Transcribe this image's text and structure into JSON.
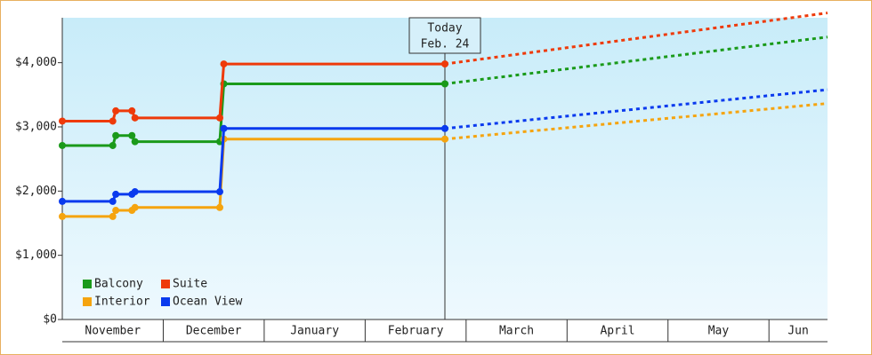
{
  "chart_data": {
    "type": "step-line",
    "x": [
      0,
      0.5,
      0.53,
      0.69,
      0.72,
      1.56,
      1.6,
      3.79
    ],
    "forecast_x": [
      3.79,
      7.58
    ],
    "xlim": [
      0,
      7.58
    ],
    "months": [
      "November",
      "December",
      "January",
      "February",
      "March",
      "April",
      "May",
      "Jun"
    ],
    "ylim": [
      0,
      4700
    ],
    "yticks": [
      {
        "value": 0,
        "label": "$0"
      },
      {
        "value": 1000,
        "label": "$1,000"
      },
      {
        "value": 2000,
        "label": "$2,000"
      },
      {
        "value": 3000,
        "label": "$3,000"
      },
      {
        "value": 4000,
        "label": "$4,000"
      }
    ],
    "annotation": {
      "x": 3.79,
      "lines": [
        "Today",
        "Feb. 24"
      ]
    },
    "series": [
      {
        "name": "Balcony",
        "color": "#1a9a1a",
        "values": [
          2710,
          2710,
          2865,
          2865,
          2770,
          2770,
          3670,
          3670
        ],
        "forecast": [
          3670,
          4400
        ]
      },
      {
        "name": "Suite",
        "color": "#ee3a0a",
        "values": [
          3090,
          3090,
          3250,
          3250,
          3140,
          3140,
          3980,
          3980
        ],
        "forecast": [
          3980,
          4775
        ]
      },
      {
        "name": "Interior",
        "color": "#f5a40f",
        "values": [
          1605,
          1605,
          1700,
          1700,
          1745,
          1745,
          2810,
          2810
        ],
        "forecast": [
          2810,
          3365
        ]
      },
      {
        "name": "Ocean View",
        "color": "#0a3aee",
        "values": [
          1840,
          1840,
          1950,
          1950,
          1990,
          1990,
          2975,
          2975
        ],
        "forecast": [
          2975,
          3580
        ]
      }
    ]
  }
}
